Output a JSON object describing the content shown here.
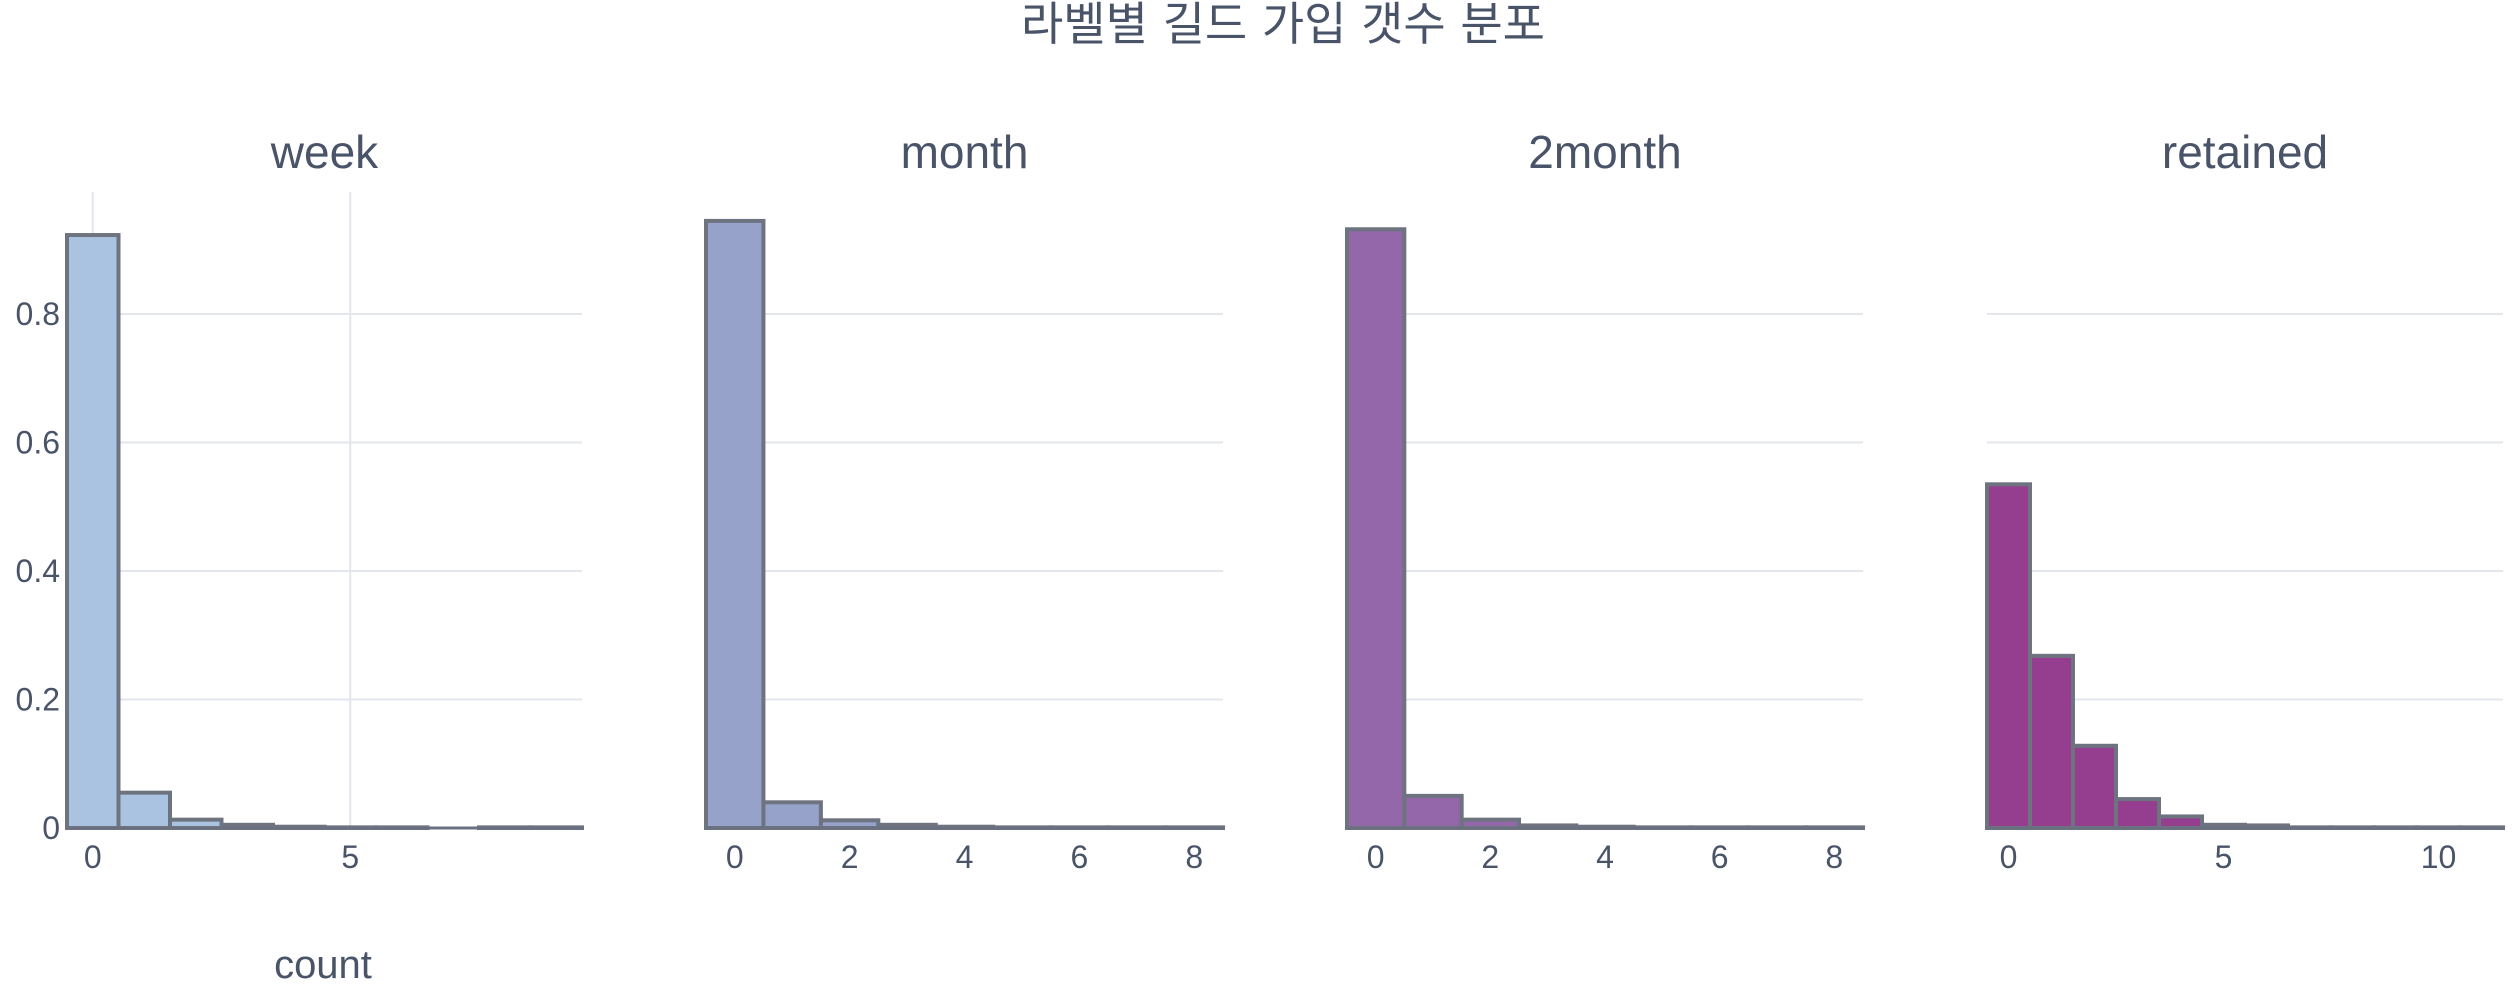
{
  "chart_data": {
    "type": "bar",
    "title": "라벨별 길드 가입 갯수 분포",
    "y_axis_title": "count",
    "ylim": [
      0,
      0.99
    ],
    "y_ticks": [
      0,
      0.2,
      0.4,
      0.6,
      0.8
    ],
    "y_tick_labels": [
      "0",
      "0.2",
      "0.4",
      "0.6",
      "0.8"
    ],
    "grid": true,
    "panels": [
      {
        "title": "week",
        "color": "#aac3e0",
        "xlim": [
          -0.5,
          9.5
        ],
        "x_ticks": [
          0,
          5
        ],
        "x_tick_labels": [
          "0",
          "5"
        ],
        "vertical_grid": true,
        "bins": [
          0,
          1,
          2,
          3,
          4,
          5,
          6,
          8,
          9
        ],
        "values": [
          0.923,
          0.055,
          0.013,
          0.005,
          0.002,
          0.001,
          0.001,
          0.001,
          0.001
        ]
      },
      {
        "title": "month",
        "color": "#97a2cb",
        "xlim": [
          -0.5,
          8.5
        ],
        "x_ticks": [
          0,
          2,
          4,
          6,
          8
        ],
        "x_tick_labels": [
          "0",
          "2",
          "4",
          "6",
          "8"
        ],
        "vertical_grid": false,
        "bins": [
          0,
          1,
          2,
          3,
          4,
          5,
          6,
          7,
          8
        ],
        "values": [
          0.945,
          0.04,
          0.012,
          0.005,
          0.002,
          0.001,
          0.001,
          0.001,
          0.001
        ]
      },
      {
        "title": "2month",
        "color": "#9467ab",
        "xlim": [
          -0.5,
          8.5
        ],
        "x_ticks": [
          0,
          2,
          4,
          6,
          8
        ],
        "x_tick_labels": [
          "0",
          "2",
          "4",
          "6",
          "8"
        ],
        "vertical_grid": false,
        "bins": [
          0,
          1,
          2,
          3,
          4,
          5,
          6,
          7,
          8
        ],
        "values": [
          0.932,
          0.05,
          0.013,
          0.004,
          0.002,
          0.001,
          0.001,
          0.001,
          0.001
        ]
      },
      {
        "title": "retained",
        "color": "#953d8e",
        "xlim": [
          -0.5,
          11.5
        ],
        "x_ticks": [
          0,
          5,
          10
        ],
        "x_tick_labels": [
          "0",
          "5",
          "10"
        ],
        "vertical_grid": false,
        "bins": [
          0,
          1,
          2,
          3,
          4,
          5,
          6,
          7,
          8,
          9,
          10,
          11
        ],
        "values": [
          0.535,
          0.268,
          0.128,
          0.045,
          0.018,
          0.005,
          0.004,
          0.001,
          0.001,
          0.001,
          0.001,
          0.001
        ]
      }
    ]
  }
}
